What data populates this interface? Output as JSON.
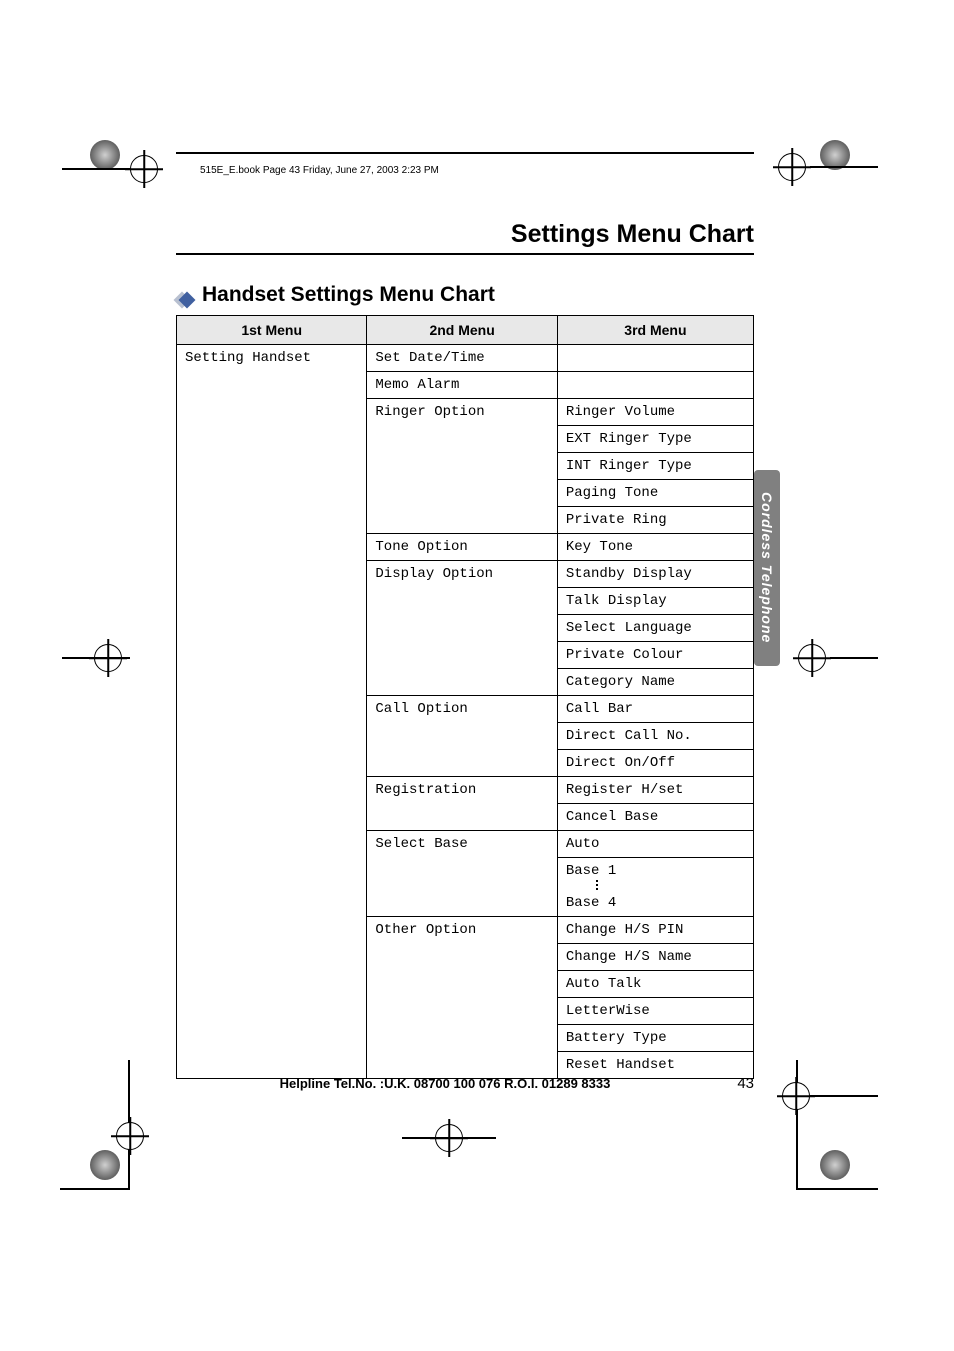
{
  "book_meta": "515E_E.book  Page 43  Friday, June 27, 2003  2:23 PM",
  "page_title": "Settings Menu Chart",
  "section_title": "Handset Settings Menu Chart",
  "side_tab": "Cordless Telephone",
  "footer_helpline": "Helpline Tel.No. :U.K. 08700 100 076  R.O.I. 01289 8333",
  "page_number": "43",
  "table": {
    "columns": [
      "1st Menu",
      "2nd Menu",
      "3rd Menu"
    ],
    "col_widths": [
      "33%",
      "33%",
      "34%"
    ],
    "header_bg": "#e8e8e8",
    "border_color": "#000000",
    "cell_font": "Courier",
    "rows": [
      {
        "c1": "Setting Handset",
        "c1_rowspan": 27,
        "c2": "Set Date/Time",
        "c2_rowspan": 1,
        "c3": ""
      },
      {
        "c2": "Memo Alarm",
        "c2_rowspan": 1,
        "c3": ""
      },
      {
        "c2": "Ringer Option",
        "c2_rowspan": 5,
        "c3": "Ringer Volume"
      },
      {
        "c3": "EXT Ringer Type"
      },
      {
        "c3": "INT Ringer Type"
      },
      {
        "c3": "Paging Tone"
      },
      {
        "c3": "Private Ring"
      },
      {
        "c2": "Tone Option",
        "c2_rowspan": 1,
        "c3": "Key Tone"
      },
      {
        "c2": "Display Option",
        "c2_rowspan": 5,
        "c3": "Standby Display"
      },
      {
        "c3": "Talk Display"
      },
      {
        "c3": "Select Language"
      },
      {
        "c3": "Private Colour"
      },
      {
        "c3": "Category Name"
      },
      {
        "c2": "Call Option",
        "c2_rowspan": 3,
        "c3": "Call Bar"
      },
      {
        "c3": "Direct Call No."
      },
      {
        "c3": "Direct On/Off"
      },
      {
        "c2": "Registration",
        "c2_rowspan": 2,
        "c3": "Register H/set"
      },
      {
        "c3": "Cancel Base"
      },
      {
        "c2": "Select Base",
        "c2_rowspan": 3,
        "c3": "Auto"
      },
      {
        "c3": "Base 1"
      },
      {
        "c3": "Base 4"
      },
      {
        "c2": "Other Option",
        "c2_rowspan": 6,
        "c3": "Change H/S PIN"
      },
      {
        "c3": "Change H/S Name"
      },
      {
        "c3": "Auto Talk"
      },
      {
        "c3": "LetterWise"
      },
      {
        "c3": "Battery Type"
      },
      {
        "c3": "Reset Handset"
      }
    ]
  },
  "colors": {
    "side_tab_bg": "#808080",
    "side_tab_text": "#ffffff",
    "diamond_light": "#b8c0d0",
    "diamond_dark": "#4060a0"
  }
}
